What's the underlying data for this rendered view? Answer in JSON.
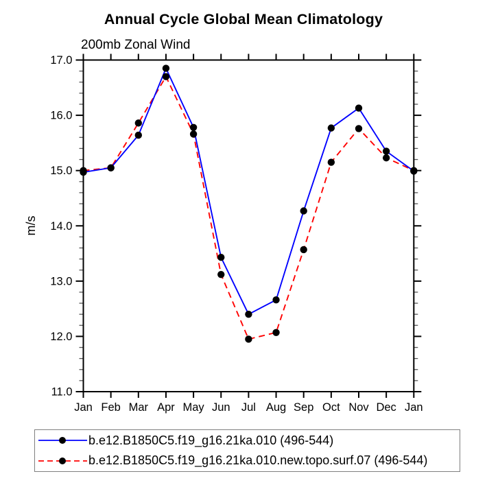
{
  "chart_data": {
    "type": "line",
    "title": "Annual Cycle Global Mean Climatology",
    "subtitle": "200mb Zonal Wind",
    "ylabel": "m/s",
    "xlabel": "",
    "ylim": [
      11.0,
      17.0
    ],
    "ytick_step": 1.0,
    "yminor_step": 0.2,
    "ytick_decimals": 1,
    "grid": false,
    "legend_position": "bottom-left",
    "categories": [
      "Jan",
      "Feb",
      "Mar",
      "Apr",
      "May",
      "Jun",
      "Jul",
      "Aug",
      "Sep",
      "Oct",
      "Nov",
      "Dec",
      "Jan"
    ],
    "series": [
      {
        "name": "b.e12.B1850C5.f19_g16.21ka.010 (496-544)",
        "color": "#0000ff",
        "style": "solid",
        "marker": "filled-circle",
        "marker_color": "#000000",
        "values": [
          14.97,
          15.05,
          15.64,
          16.85,
          15.78,
          13.43,
          12.4,
          12.66,
          14.27,
          15.77,
          16.13,
          15.35,
          14.99
        ]
      },
      {
        "name": "b.e12.B1850C5.f19_g16.21ka.010.new.topo.surf.07 (496-544)",
        "color": "#ff0000",
        "style": "dashed",
        "marker": "filled-circle",
        "marker_color": "#000000",
        "values": [
          15.0,
          15.05,
          15.86,
          16.7,
          15.66,
          13.12,
          11.95,
          12.07,
          13.57,
          15.15,
          15.76,
          15.23,
          15.0
        ]
      }
    ],
    "colors": {
      "axis": "#000000",
      "minor_tick": "#555555",
      "legend_border": "#7f7f7f",
      "background": "#ffffff"
    }
  }
}
